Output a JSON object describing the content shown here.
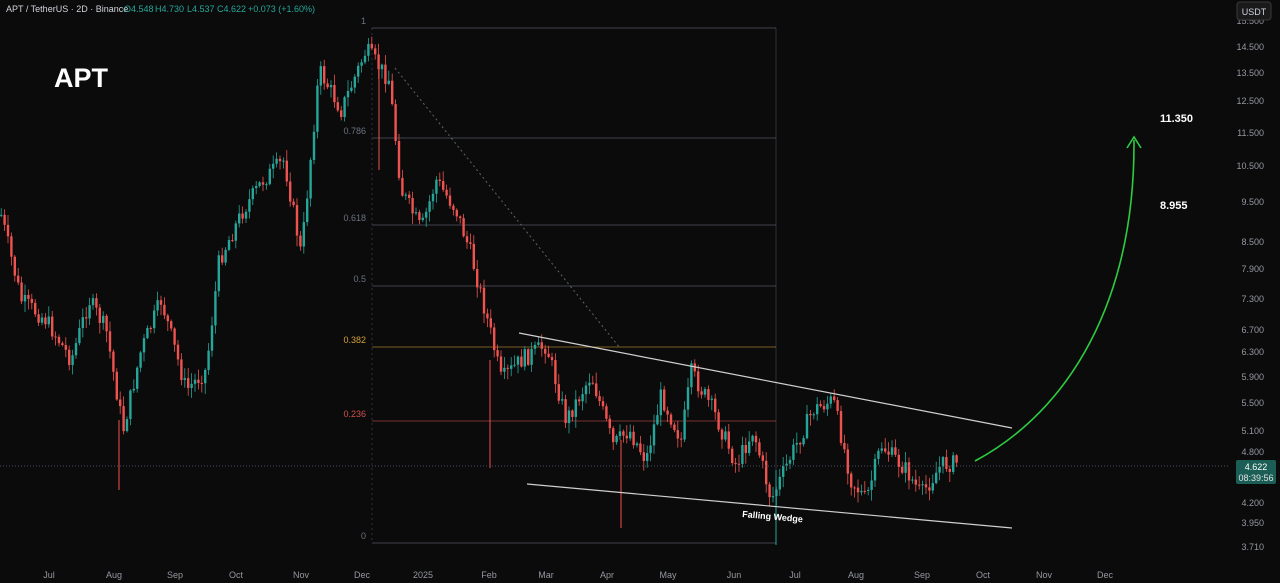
{
  "header": {
    "symbol_text": "APT / TetherUS · 2D · Binance",
    "o": "O4.548",
    "h": "H4.730",
    "l": "L4.537",
    "c": "C4.622",
    "change": "+0.073 (+1.60%)",
    "currency_button": "USDT"
  },
  "chart_data": {
    "type": "candlestick",
    "title": "APT",
    "y_axis_ticks": [
      "15.500",
      "14.500",
      "13.500",
      "12.500",
      "11.500",
      "10.500",
      "9.500",
      "8.500",
      "7.900",
      "7.300",
      "6.700",
      "6.300",
      "5.900",
      "5.500",
      "5.100",
      "4.800",
      "4.200",
      "3.950",
      "3.710"
    ],
    "x_axis_ticks": [
      "Jul",
      "Aug",
      "Sep",
      "Oct",
      "Nov",
      "Dec",
      "2025",
      "Feb",
      "Mar",
      "Apr",
      "May",
      "Jun",
      "Jul",
      "Aug",
      "Sep",
      "Oct",
      "Nov",
      "Dec"
    ],
    "current_price": "4.622",
    "countdown": "08:39:56",
    "fib_levels": [
      {
        "label": "1",
        "color": "#6b7280"
      },
      {
        "label": "0.786",
        "color": "#6b7280"
      },
      {
        "label": "0.618",
        "color": "#6b7280"
      },
      {
        "label": "0.5",
        "color": "#6b7280"
      },
      {
        "label": "0.382",
        "color": "#d4a03a"
      },
      {
        "label": "0.236",
        "color": "#d05050"
      },
      {
        "label": "0",
        "color": "#6b7280"
      }
    ],
    "pattern_label": "Falling Wedge",
    "targets": [
      "11.350",
      "8.955"
    ],
    "colors": {
      "up": "#26a69a",
      "down": "#ef5350",
      "arrow": "#2ecc40",
      "wedge": "#d0d0d0"
    }
  }
}
